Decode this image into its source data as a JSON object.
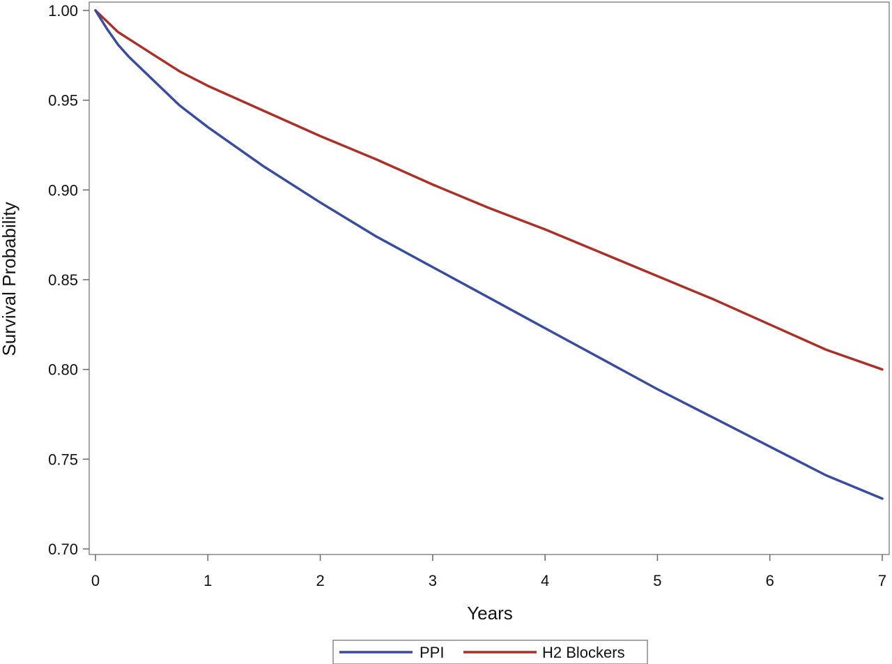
{
  "chart_data": {
    "type": "line",
    "xlabel": "Years",
    "ylabel": "Survival Probability",
    "xlim": [
      0,
      7
    ],
    "ylim": [
      0.7,
      1.0
    ],
    "x_ticks": [
      "0",
      "1",
      "2",
      "3",
      "4",
      "5",
      "6",
      "7"
    ],
    "y_ticks": [
      "0.70",
      "0.75",
      "0.80",
      "0.85",
      "0.90",
      "0.95",
      "1.00"
    ],
    "grid": false,
    "legend_position": "bottom",
    "series": [
      {
        "name": "PPI",
        "color": "#3a4c9c",
        "x": [
          0,
          0.1,
          0.2,
          0.3,
          0.5,
          0.75,
          1,
          1.5,
          2,
          2.5,
          3,
          3.5,
          4,
          4.5,
          5,
          5.5,
          6,
          6.5,
          7
        ],
        "y": [
          1.0,
          0.99,
          0.981,
          0.974,
          0.962,
          0.947,
          0.935,
          0.913,
          0.893,
          0.874,
          0.857,
          0.84,
          0.823,
          0.806,
          0.789,
          0.773,
          0.757,
          0.741,
          0.728
        ]
      },
      {
        "name": "H2 Blockers",
        "color": "#a83229",
        "x": [
          0,
          0.1,
          0.2,
          0.3,
          0.5,
          0.75,
          1,
          1.5,
          2,
          2.5,
          3,
          3.5,
          4,
          4.5,
          5,
          5.5,
          6,
          6.5,
          7
        ],
        "y": [
          1.0,
          0.994,
          0.988,
          0.984,
          0.976,
          0.966,
          0.958,
          0.944,
          0.93,
          0.917,
          0.903,
          0.89,
          0.878,
          0.865,
          0.852,
          0.839,
          0.825,
          0.811,
          0.8
        ]
      }
    ]
  }
}
